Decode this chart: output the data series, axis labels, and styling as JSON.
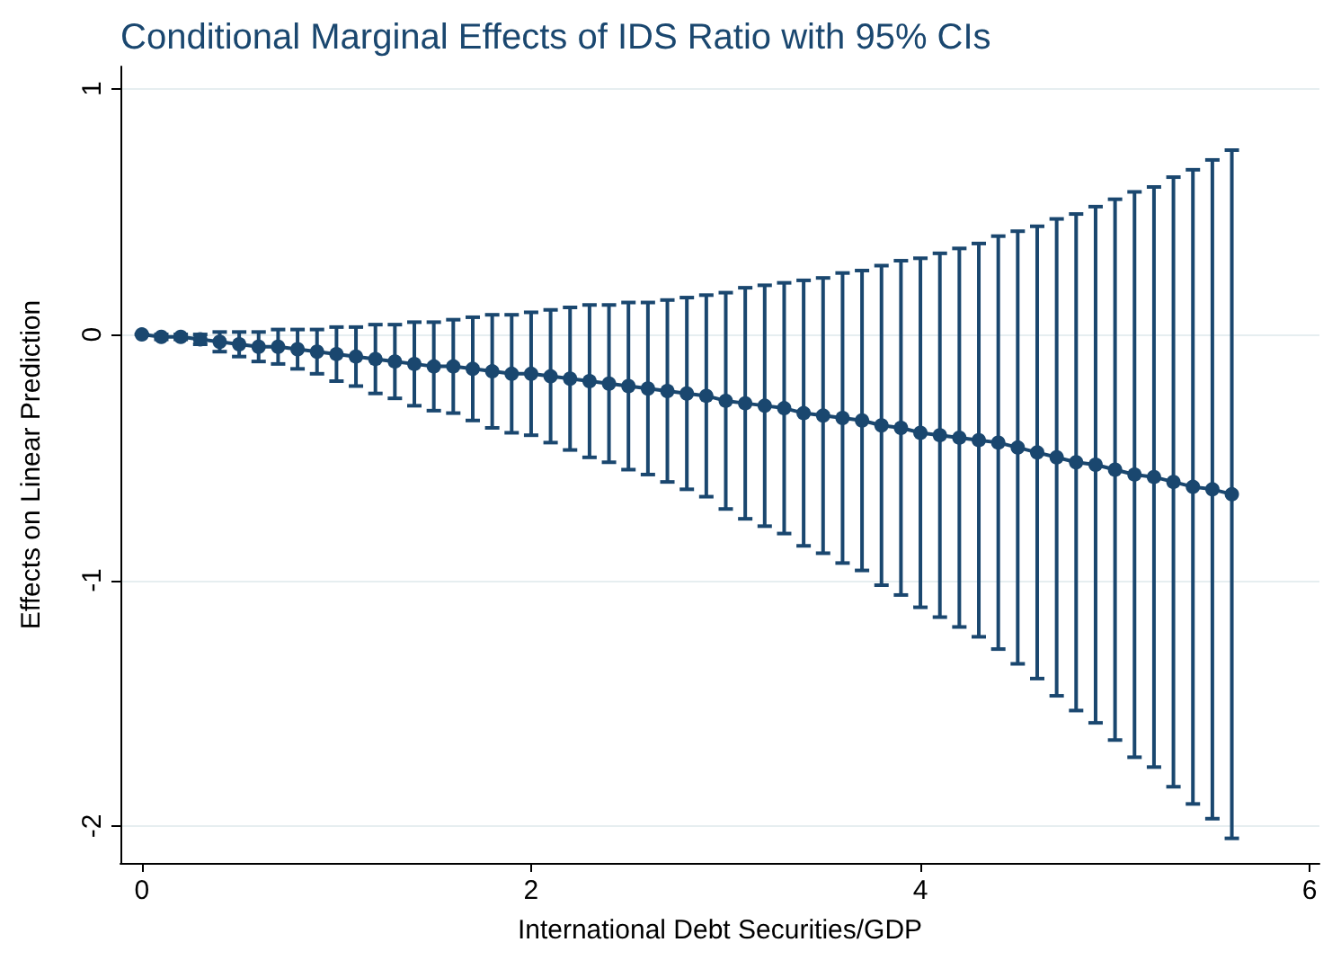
{
  "chart_data": {
    "type": "line",
    "title": "Conditional Marginal Effects of IDS Ratio with 95% CIs",
    "xlabel": "International Debt Securities/GDP",
    "ylabel": "Effects on Linear Prediction",
    "x": [
      0,
      0.1,
      0.2,
      0.3,
      0.4,
      0.5,
      0.6,
      0.7,
      0.8,
      0.9,
      1.0,
      1.1,
      1.2,
      1.3,
      1.4,
      1.5,
      1.6,
      1.7,
      1.8,
      1.9,
      2.0,
      2.1,
      2.2,
      2.3,
      2.4,
      2.5,
      2.6,
      2.7,
      2.8,
      2.9,
      3.0,
      3.1,
      3.2,
      3.3,
      3.4,
      3.5,
      3.6,
      3.7,
      3.8,
      3.9,
      4.0,
      4.1,
      4.2,
      4.3,
      4.4,
      4.5,
      4.6,
      4.7,
      4.8,
      4.9,
      5.0,
      5.1,
      5.2,
      5.3,
      5.4,
      5.5,
      5.6
    ],
    "series": [
      {
        "color": "#1a476f",
        "values": [
          0,
          -0.01,
          -0.01,
          -0.02,
          -0.03,
          -0.04,
          -0.05,
          -0.05,
          -0.06,
          -0.07,
          -0.08,
          -0.09,
          -0.1,
          -0.11,
          -0.12,
          -0.13,
          -0.13,
          -0.14,
          -0.15,
          -0.16,
          -0.16,
          -0.17,
          -0.18,
          -0.19,
          -0.2,
          -0.21,
          -0.22,
          -0.23,
          -0.24,
          -0.25,
          -0.27,
          -0.28,
          -0.29,
          -0.3,
          -0.32,
          -0.33,
          -0.34,
          -0.35,
          -0.37,
          -0.38,
          -0.4,
          -0.41,
          -0.42,
          -0.43,
          -0.44,
          -0.46,
          -0.48,
          -0.5,
          -0.52,
          -0.53,
          -0.55,
          -0.57,
          -0.58,
          -0.6,
          -0.62,
          -0.63,
          -0.65
        ],
        "errors": [
          [
            0,
            0
          ],
          [
            -0.02,
            0.0
          ],
          [
            -0.02,
            0.0
          ],
          [
            -0.04,
            0.0
          ],
          [
            -0.07,
            0.01
          ],
          [
            -0.09,
            0.01
          ],
          [
            -0.11,
            0.01
          ],
          [
            -0.12,
            0.02
          ],
          [
            -0.14,
            0.02
          ],
          [
            -0.16,
            0.02
          ],
          [
            -0.19,
            0.03
          ],
          [
            -0.21,
            0.03
          ],
          [
            -0.24,
            0.04
          ],
          [
            -0.26,
            0.04
          ],
          [
            -0.29,
            0.05
          ],
          [
            -0.31,
            0.05
          ],
          [
            -0.32,
            0.06
          ],
          [
            -0.35,
            0.07
          ],
          [
            -0.38,
            0.08
          ],
          [
            -0.4,
            0.08
          ],
          [
            -0.41,
            0.09
          ],
          [
            -0.44,
            0.1
          ],
          [
            -0.47,
            0.11
          ],
          [
            -0.5,
            0.12
          ],
          [
            -0.52,
            0.12
          ],
          [
            -0.55,
            0.13
          ],
          [
            -0.57,
            0.13
          ],
          [
            -0.6,
            0.14
          ],
          [
            -0.63,
            0.15
          ],
          [
            -0.66,
            0.16
          ],
          [
            -0.71,
            0.17
          ],
          [
            -0.75,
            0.19
          ],
          [
            -0.78,
            0.2
          ],
          [
            -0.81,
            0.21
          ],
          [
            -0.86,
            0.22
          ],
          [
            -0.89,
            0.23
          ],
          [
            -0.93,
            0.25
          ],
          [
            -0.96,
            0.26
          ],
          [
            -1.02,
            0.28
          ],
          [
            -1.06,
            0.3
          ],
          [
            -1.11,
            0.31
          ],
          [
            -1.15,
            0.33
          ],
          [
            -1.19,
            0.35
          ],
          [
            -1.23,
            0.37
          ],
          [
            -1.28,
            0.4
          ],
          [
            -1.34,
            0.42
          ],
          [
            -1.4,
            0.44
          ],
          [
            -1.47,
            0.47
          ],
          [
            -1.53,
            0.49
          ],
          [
            -1.58,
            0.52
          ],
          [
            -1.65,
            0.55
          ],
          [
            -1.72,
            0.58
          ],
          [
            -1.76,
            0.6
          ],
          [
            -1.84,
            0.64
          ],
          [
            -1.91,
            0.67
          ],
          [
            -1.97,
            0.71
          ],
          [
            -2.05,
            0.75
          ]
        ]
      }
    ],
    "xlim": [
      -0.11,
      6.05
    ],
    "xticks": [
      0,
      2,
      4,
      6
    ],
    "ylim": [
      -2.15,
      1.09
    ],
    "yticks": [
      -2,
      -1,
      0,
      1
    ],
    "grid": "y",
    "marker": "circle",
    "line_style": "solid"
  }
}
